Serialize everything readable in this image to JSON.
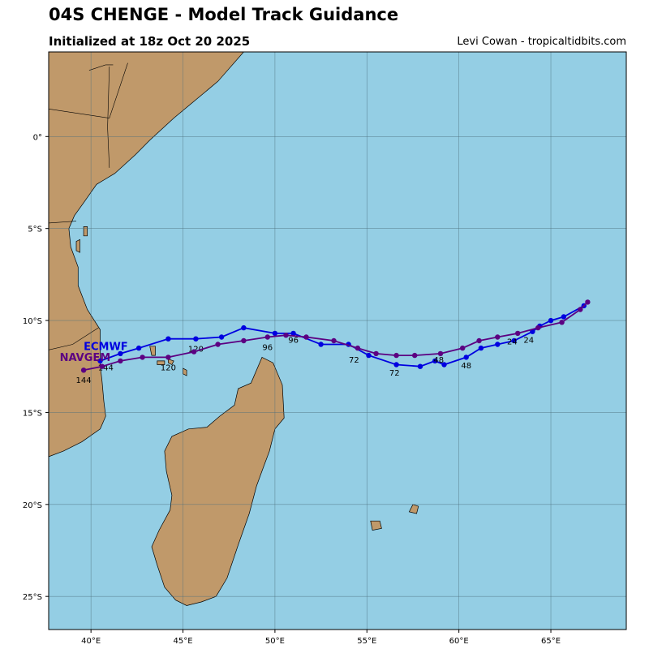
{
  "header": {
    "title": "04S CHENGE - Model Track Guidance",
    "subtitle": "Initialized at 18z Oct 20 2025",
    "credit": "Levi Cowan - tropicaltidbits.com"
  },
  "colors": {
    "ocean": "#94cee4",
    "land": "#c0996a",
    "coast": "#000000",
    "grid": "#4d6f7c",
    "ecmwf": "#0000e0",
    "navgem": "#5c0082"
  },
  "map": {
    "lon_range": [
      37.7,
      69.1
    ],
    "lat_range": [
      -26.8,
      4.6
    ],
    "lon_ticks": [
      {
        "value": 40,
        "label": "40°E"
      },
      {
        "value": 45,
        "label": "45°E"
      },
      {
        "value": 50,
        "label": "50°E"
      },
      {
        "value": 55,
        "label": "55°E"
      },
      {
        "value": 60,
        "label": "60°E"
      },
      {
        "value": 65,
        "label": "65°E"
      }
    ],
    "lat_ticks": [
      {
        "value": 0,
        "label": "0°"
      },
      {
        "value": -5,
        "label": "5°S"
      },
      {
        "value": -10,
        "label": "10°S"
      },
      {
        "value": -15,
        "label": "15°S"
      },
      {
        "value": -20,
        "label": "20°S"
      },
      {
        "value": -25,
        "label": "25°S"
      }
    ],
    "land_polygons": [
      {
        "name": "africa-coast",
        "points": [
          [
            37.7,
            -17.4
          ],
          [
            38.5,
            -17.1
          ],
          [
            39.5,
            -16.6
          ],
          [
            40.5,
            -15.9
          ],
          [
            40.8,
            -15.2
          ],
          [
            40.7,
            -14.4
          ],
          [
            40.6,
            -13.3
          ],
          [
            40.5,
            -12.4
          ],
          [
            40.5,
            -11.4
          ],
          [
            40.5,
            -10.5
          ],
          [
            39.8,
            -9.4
          ],
          [
            39.3,
            -8.1
          ],
          [
            39.3,
            -7.1
          ],
          [
            38.9,
            -6.0
          ],
          [
            38.8,
            -5.0
          ],
          [
            39.1,
            -4.3
          ],
          [
            39.6,
            -3.6
          ],
          [
            40.3,
            -2.6
          ],
          [
            41.3,
            -2.0
          ],
          [
            42.4,
            -1.0
          ],
          [
            43.2,
            -0.2
          ],
          [
            44.5,
            1.0
          ],
          [
            45.7,
            2.0
          ],
          [
            46.9,
            3.0
          ],
          [
            48.3,
            4.6
          ],
          [
            37.7,
            4.6
          ]
        ]
      },
      {
        "name": "madagascar",
        "points": [
          [
            49.3,
            -12.0
          ],
          [
            49.9,
            -12.3
          ],
          [
            50.4,
            -13.5
          ],
          [
            50.5,
            -15.3
          ],
          [
            50.0,
            -15.9
          ],
          [
            49.7,
            -17.1
          ],
          [
            49.4,
            -17.9
          ],
          [
            49.0,
            -19.0
          ],
          [
            48.6,
            -20.5
          ],
          [
            48.0,
            -22.2
          ],
          [
            47.4,
            -24.0
          ],
          [
            46.8,
            -25.0
          ],
          [
            46.0,
            -25.3
          ],
          [
            45.2,
            -25.5
          ],
          [
            44.6,
            -25.2
          ],
          [
            44.0,
            -24.5
          ],
          [
            43.6,
            -23.3
          ],
          [
            43.3,
            -22.3
          ],
          [
            43.7,
            -21.4
          ],
          [
            44.3,
            -20.3
          ],
          [
            44.4,
            -19.5
          ],
          [
            44.1,
            -18.2
          ],
          [
            44.0,
            -17.1
          ],
          [
            44.4,
            -16.3
          ],
          [
            45.3,
            -15.9
          ],
          [
            46.3,
            -15.8
          ],
          [
            47.0,
            -15.2
          ],
          [
            47.8,
            -14.6
          ],
          [
            48.0,
            -13.7
          ],
          [
            48.7,
            -13.4
          ],
          [
            49.3,
            -12.0
          ]
        ]
      },
      {
        "name": "grande-comore",
        "points": [
          [
            43.2,
            -11.4
          ],
          [
            43.5,
            -11.4
          ],
          [
            43.5,
            -11.9
          ],
          [
            43.3,
            -11.9
          ]
        ]
      },
      {
        "name": "moheli",
        "points": [
          [
            43.6,
            -12.2
          ],
          [
            44.0,
            -12.2
          ],
          [
            44.0,
            -12.4
          ],
          [
            43.6,
            -12.4
          ]
        ]
      },
      {
        "name": "anjouan",
        "points": [
          [
            44.2,
            -12.1
          ],
          [
            44.5,
            -12.2
          ],
          [
            44.4,
            -12.4
          ],
          [
            44.2,
            -12.3
          ]
        ]
      },
      {
        "name": "mayotte",
        "points": [
          [
            45.0,
            -12.6
          ],
          [
            45.2,
            -12.7
          ],
          [
            45.2,
            -13.0
          ],
          [
            45.0,
            -12.9
          ]
        ]
      },
      {
        "name": "reunion",
        "points": [
          [
            55.2,
            -20.9
          ],
          [
            55.7,
            -20.9
          ],
          [
            55.8,
            -21.3
          ],
          [
            55.3,
            -21.4
          ]
        ]
      },
      {
        "name": "mauritius",
        "points": [
          [
            57.5,
            -20.0
          ],
          [
            57.8,
            -20.1
          ],
          [
            57.7,
            -20.5
          ],
          [
            57.3,
            -20.4
          ]
        ]
      },
      {
        "name": "zanzibar",
        "points": [
          [
            39.2,
            -5.7
          ],
          [
            39.4,
            -5.6
          ],
          [
            39.4,
            -6.3
          ],
          [
            39.2,
            -6.2
          ]
        ]
      },
      {
        "name": "pemba",
        "points": [
          [
            39.6,
            -4.9
          ],
          [
            39.8,
            -4.9
          ],
          [
            39.8,
            -5.4
          ],
          [
            39.6,
            -5.4
          ]
        ]
      }
    ],
    "borders": [
      [
        [
          37.7,
          1.5
        ],
        [
          41.0,
          1.0
        ],
        [
          42.0,
          4.0
        ]
      ],
      [
        [
          39.9,
          3.6
        ],
        [
          40.8,
          3.9
        ],
        [
          41.2,
          3.9
        ]
      ],
      [
        [
          41.0,
          -1.7
        ],
        [
          40.9,
          0.5
        ],
        [
          41.0,
          3.8
        ]
      ],
      [
        [
          37.7,
          -4.7
        ],
        [
          39.2,
          -4.6
        ]
      ],
      [
        [
          37.7,
          -11.6
        ],
        [
          39.0,
          -11.3
        ],
        [
          40.4,
          -10.4
        ]
      ]
    ]
  },
  "chart_data": {
    "type": "map-track",
    "series": [
      {
        "name": "ECMWF",
        "points": [
          [
            66.8,
            -9.2
          ],
          [
            65.7,
            -9.8
          ],
          [
            65.0,
            -10.0
          ],
          [
            64.4,
            -10.3
          ],
          [
            64.0,
            -10.6
          ],
          [
            63.0,
            -11.1
          ],
          [
            62.1,
            -11.3
          ],
          [
            61.2,
            -11.5
          ],
          [
            60.4,
            -12.0
          ],
          [
            59.2,
            -12.4
          ],
          [
            58.7,
            -12.2
          ],
          [
            57.9,
            -12.5
          ],
          [
            56.6,
            -12.4
          ],
          [
            55.1,
            -11.9
          ],
          [
            54.0,
            -11.3
          ],
          [
            52.5,
            -11.3
          ],
          [
            51.0,
            -10.7
          ],
          [
            50.0,
            -10.7
          ],
          [
            48.3,
            -10.4
          ],
          [
            47.1,
            -10.9
          ],
          [
            45.7,
            -11.0
          ],
          [
            44.2,
            -11.0
          ],
          [
            42.6,
            -11.5
          ],
          [
            41.6,
            -11.8
          ],
          [
            40.5,
            -12.2
          ]
        ],
        "labels": [
          {
            "text": "24",
            "lon": 62.9,
            "lat": -11.3
          },
          {
            "text": "48",
            "lon": 60.4,
            "lat": -12.6
          },
          {
            "text": "72",
            "lon": 56.5,
            "lat": -13.0
          },
          {
            "text": "96",
            "lon": 51.0,
            "lat": -11.2
          },
          {
            "text": "120",
            "lon": 45.7,
            "lat": -11.7
          },
          {
            "text": "144",
            "lon": 40.8,
            "lat": -12.7
          }
        ],
        "name_label": {
          "lon": 39.6,
          "lat": -11.6
        }
      },
      {
        "name": "NAVGEM",
        "points": [
          [
            67.0,
            -9.0
          ],
          [
            66.6,
            -9.4
          ],
          [
            65.6,
            -10.1
          ],
          [
            64.3,
            -10.4
          ],
          [
            63.2,
            -10.7
          ],
          [
            62.1,
            -10.9
          ],
          [
            61.1,
            -11.1
          ],
          [
            60.2,
            -11.5
          ],
          [
            59.0,
            -11.8
          ],
          [
            57.6,
            -11.9
          ],
          [
            56.6,
            -11.9
          ],
          [
            55.5,
            -11.8
          ],
          [
            54.5,
            -11.5
          ],
          [
            53.2,
            -11.1
          ],
          [
            51.7,
            -10.9
          ],
          [
            50.6,
            -10.8
          ],
          [
            49.6,
            -10.9
          ],
          [
            48.3,
            -11.1
          ],
          [
            46.9,
            -11.3
          ],
          [
            45.6,
            -11.7
          ],
          [
            44.2,
            -12.0
          ],
          [
            42.8,
            -12.0
          ],
          [
            41.6,
            -12.2
          ],
          [
            40.6,
            -12.5
          ],
          [
            39.6,
            -12.7
          ]
        ],
        "labels": [
          {
            "text": "24",
            "lon": 63.8,
            "lat": -11.2
          },
          {
            "text": "48",
            "lon": 58.9,
            "lat": -12.3
          },
          {
            "text": "72",
            "lon": 54.3,
            "lat": -12.3
          },
          {
            "text": "96",
            "lon": 49.6,
            "lat": -11.6
          },
          {
            "text": "120",
            "lon": 44.2,
            "lat": -12.7
          },
          {
            "text": "144",
            "lon": 39.6,
            "lat": -13.4
          }
        ],
        "name_label": {
          "lon": 38.3,
          "lat": -12.2
        }
      }
    ]
  }
}
